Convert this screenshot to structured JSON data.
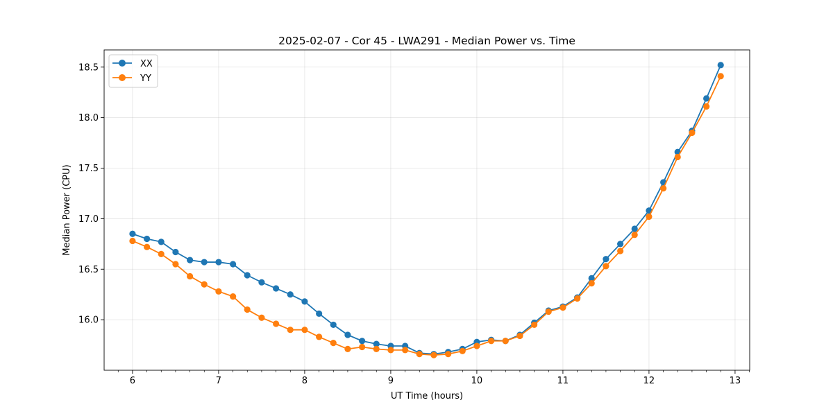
{
  "chart_data": {
    "type": "line",
    "title": "2025-02-07 - Cor 45 - LWA291 - Median Power vs. Time",
    "xlabel": "UT Time (hours)",
    "ylabel": "Median Power (CPU)",
    "xlim": [
      5.67,
      13.17
    ],
    "ylim": [
      15.5,
      18.67
    ],
    "xticks": [
      6,
      7,
      8,
      9,
      10,
      11,
      12,
      13
    ],
    "xtick_labels": [
      "6",
      "7",
      "8",
      "9",
      "10",
      "11",
      "12",
      "13"
    ],
    "xminor_step": 0.166667,
    "yticks": [
      16.0,
      16.5,
      17.0,
      17.5,
      18.0,
      18.5
    ],
    "ytick_labels": [
      "16.0",
      "16.5",
      "17.0",
      "17.5",
      "18.0",
      "18.5"
    ],
    "grid": true,
    "legend_position": "top-left",
    "x": [
      6.0,
      6.167,
      6.333,
      6.5,
      6.667,
      6.833,
      7.0,
      7.167,
      7.333,
      7.5,
      7.667,
      7.833,
      8.0,
      8.167,
      8.333,
      8.5,
      8.667,
      8.833,
      9.0,
      9.167,
      9.333,
      9.5,
      9.667,
      9.833,
      10.0,
      10.167,
      10.333,
      10.5,
      10.667,
      10.833,
      11.0,
      11.167,
      11.333,
      11.5,
      11.667,
      11.833,
      12.0,
      12.167,
      12.333,
      12.5,
      12.667,
      12.833
    ],
    "series": [
      {
        "name": "XX",
        "color": "#1f77b4",
        "values": [
          16.85,
          16.8,
          16.77,
          16.67,
          16.59,
          16.57,
          16.57,
          16.55,
          16.44,
          16.37,
          16.31,
          16.25,
          16.18,
          16.06,
          15.95,
          15.85,
          15.79,
          15.76,
          15.74,
          15.74,
          15.67,
          15.66,
          15.68,
          15.71,
          15.78,
          15.8,
          15.79,
          15.85,
          15.97,
          16.09,
          16.13,
          16.22,
          16.41,
          16.6,
          16.75,
          16.9,
          17.08,
          17.36,
          17.66,
          17.87,
          18.19,
          18.52
        ]
      },
      {
        "name": "YY",
        "color": "#ff7f0e",
        "values": [
          16.78,
          16.72,
          16.65,
          16.55,
          16.43,
          16.35,
          16.28,
          16.23,
          16.1,
          16.02,
          15.96,
          15.9,
          15.9,
          15.83,
          15.77,
          15.71,
          15.73,
          15.71,
          15.7,
          15.7,
          15.66,
          15.65,
          15.66,
          15.69,
          15.74,
          15.79,
          15.79,
          15.84,
          15.95,
          16.08,
          16.12,
          16.21,
          16.36,
          16.53,
          16.68,
          16.84,
          17.02,
          17.3,
          17.61,
          17.85,
          18.11,
          18.41
        ]
      }
    ]
  }
}
